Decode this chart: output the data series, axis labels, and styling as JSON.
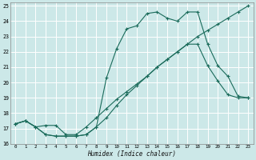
{
  "xlabel": "Humidex (Indice chaleur)",
  "bg_color": "#cce8e8",
  "grid_color": "#ffffff",
  "line_color": "#1a6b5a",
  "xlim": [
    -0.5,
    23.5
  ],
  "ylim": [
    16,
    25.2
  ],
  "xticks": [
    0,
    1,
    2,
    3,
    4,
    5,
    6,
    7,
    8,
    9,
    10,
    11,
    12,
    13,
    14,
    15,
    16,
    17,
    18,
    19,
    20,
    21,
    22,
    23
  ],
  "yticks": [
    16,
    17,
    18,
    19,
    20,
    21,
    22,
    23,
    24,
    25
  ],
  "line1_x": [
    0,
    1,
    2,
    3,
    4,
    5,
    6,
    7,
    8,
    9,
    10,
    11,
    12,
    13,
    14,
    15,
    16,
    17,
    18,
    19,
    20,
    21,
    22,
    23
  ],
  "line1_y": [
    17.3,
    17.5,
    17.1,
    17.2,
    17.2,
    16.6,
    16.6,
    17.1,
    17.7,
    18.3,
    18.9,
    19.4,
    19.9,
    20.4,
    21.0,
    21.5,
    22.0,
    22.5,
    23.0,
    23.4,
    23.8,
    24.2,
    24.6,
    25.0
  ],
  "line2_x": [
    0,
    1,
    2,
    3,
    4,
    5,
    6,
    7,
    8,
    9,
    10,
    11,
    12,
    13,
    14,
    15,
    16,
    17,
    18,
    19,
    20,
    21,
    22,
    23
  ],
  "line2_y": [
    17.3,
    17.5,
    17.1,
    16.6,
    16.5,
    16.5,
    16.5,
    16.6,
    17.1,
    17.7,
    18.5,
    19.2,
    19.8,
    20.4,
    21.0,
    21.5,
    22.0,
    22.5,
    22.5,
    21.1,
    20.1,
    19.2,
    19.0,
    19.0
  ],
  "line3_x": [
    0,
    1,
    2,
    3,
    4,
    5,
    6,
    7,
    8,
    9,
    10,
    11,
    12,
    13,
    14,
    15,
    16,
    17,
    18,
    19,
    20,
    21,
    22,
    23
  ],
  "line3_y": [
    17.3,
    17.5,
    17.1,
    16.6,
    16.5,
    16.5,
    16.5,
    16.6,
    17.1,
    20.3,
    22.2,
    23.5,
    23.7,
    24.5,
    24.6,
    24.2,
    24.0,
    24.6,
    24.6,
    22.5,
    21.1,
    20.4,
    19.1,
    19.0
  ]
}
